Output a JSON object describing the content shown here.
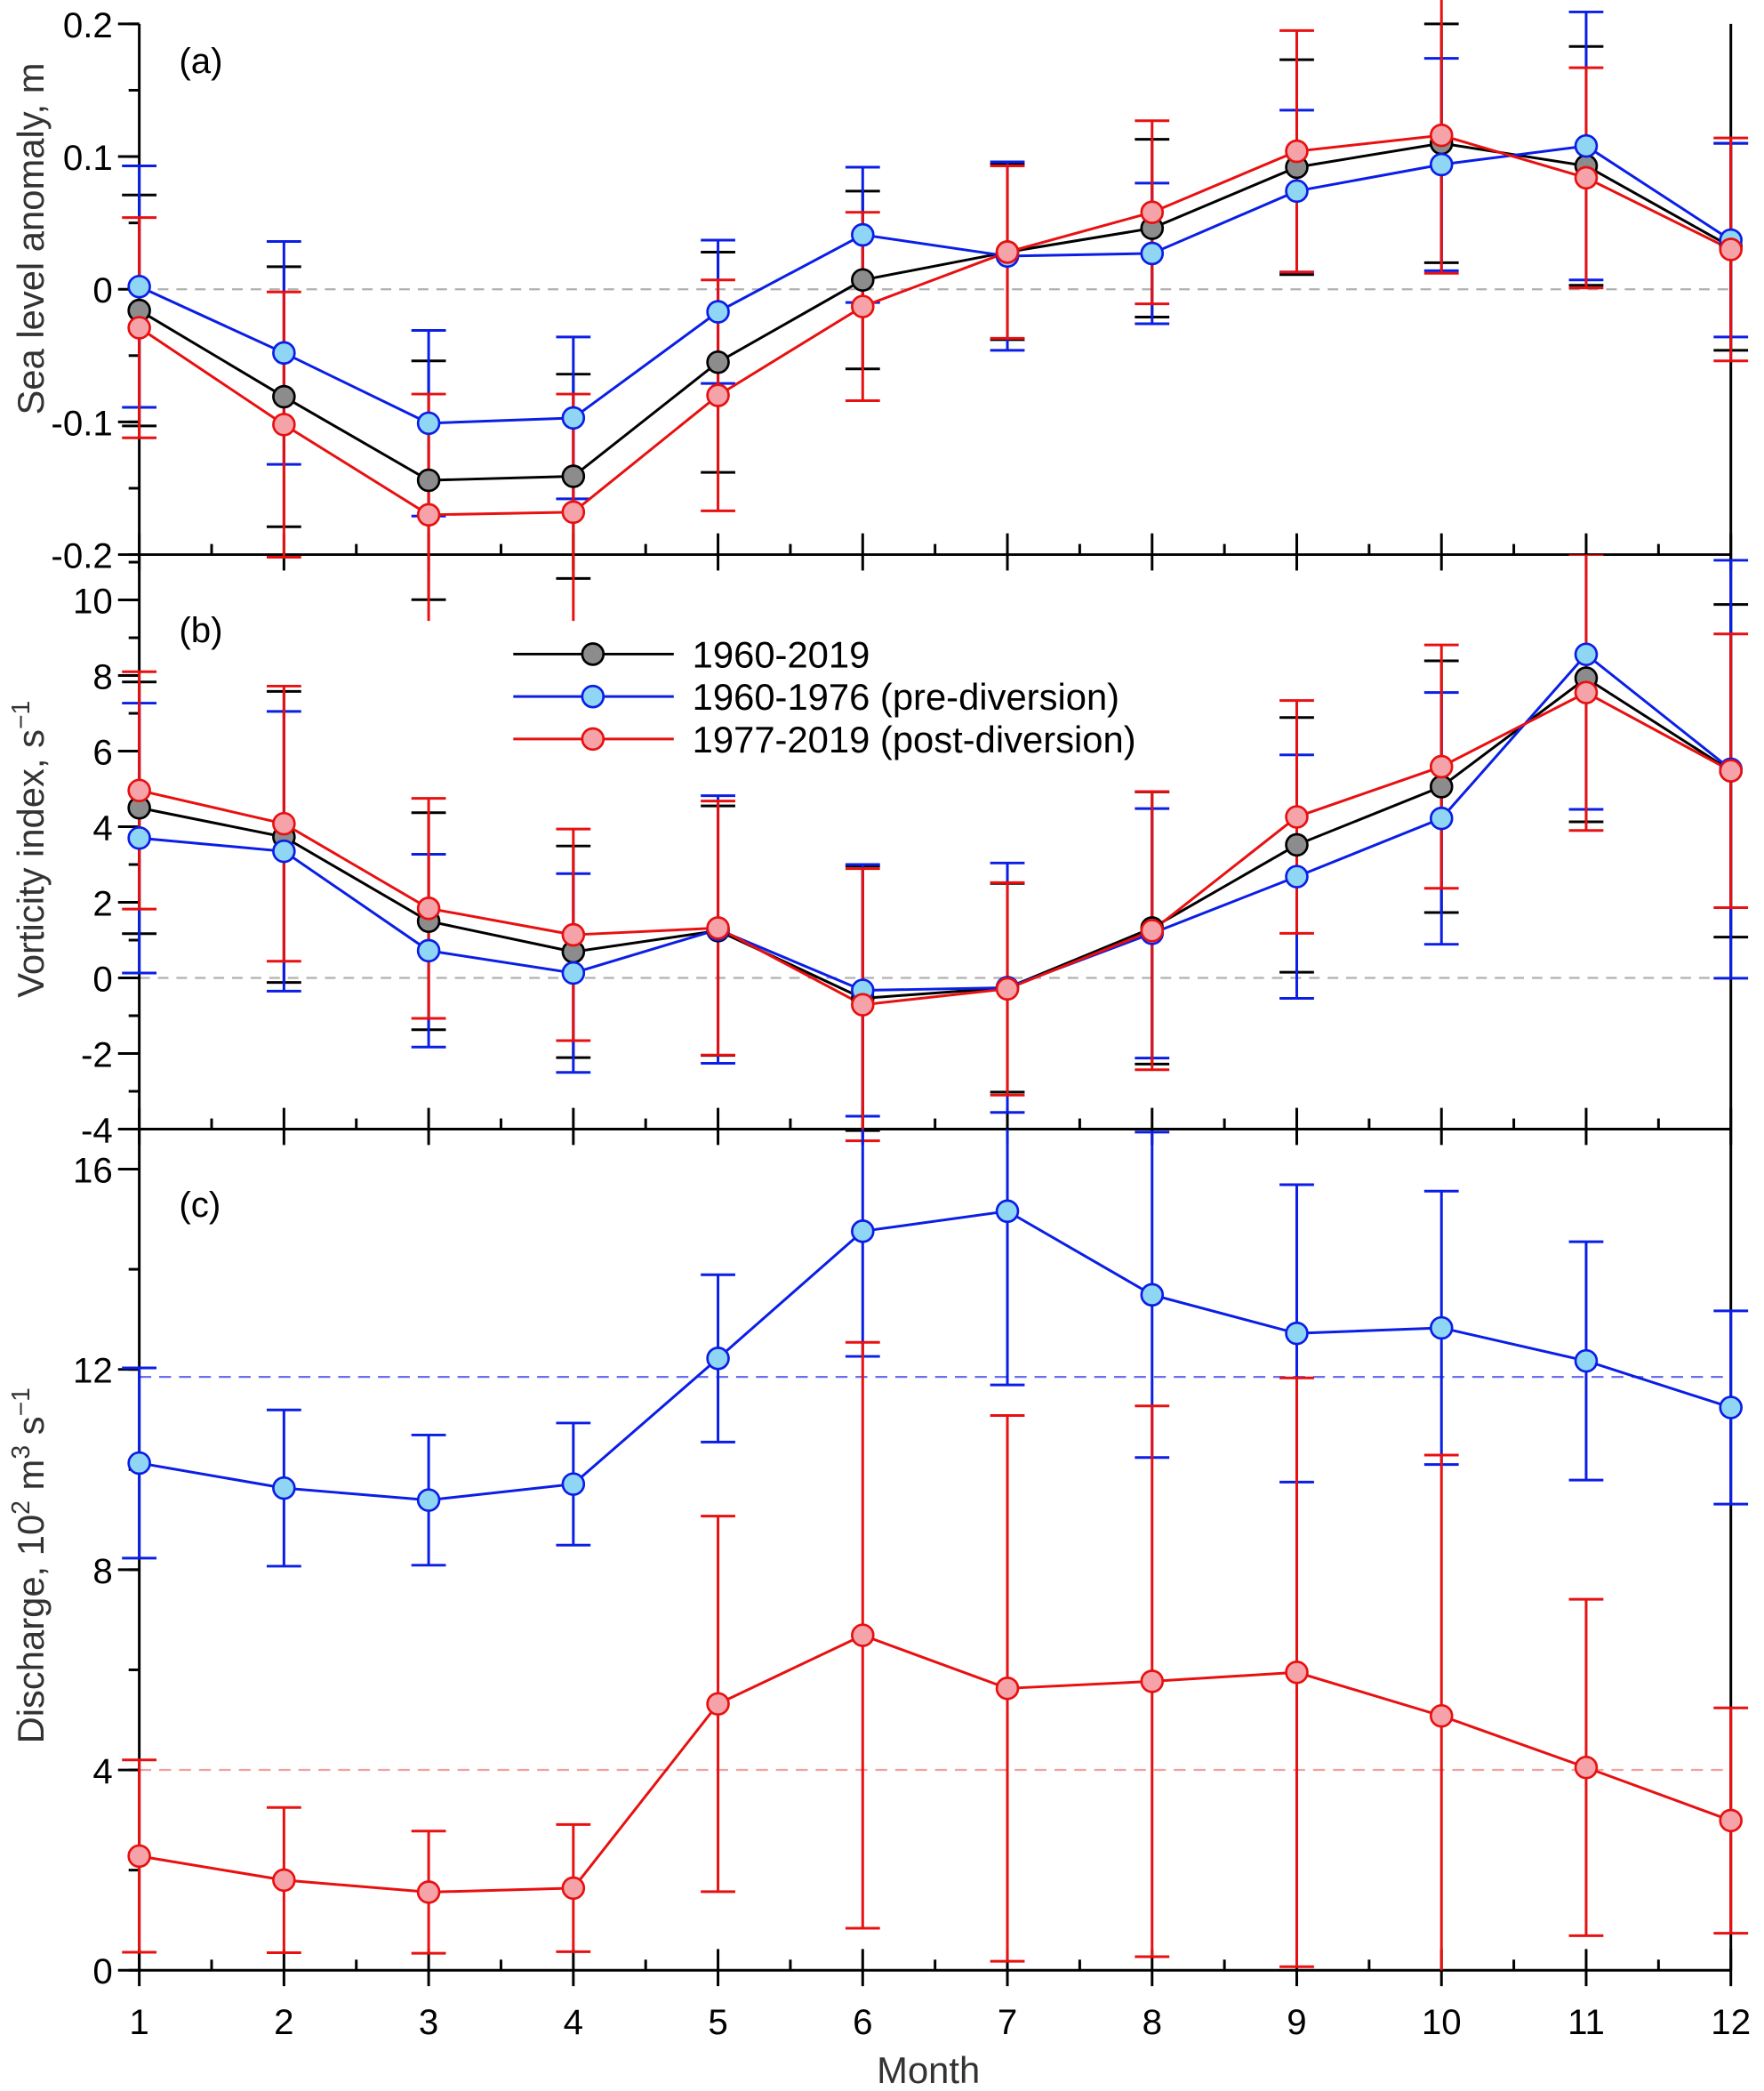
{
  "chart_data": [
    {
      "type": "line",
      "panel_label": "(a)",
      "ylabel": "Sea level anomaly, m",
      "xlabel": "",
      "ylim": [
        -0.2,
        0.2
      ],
      "yticks": [
        "-0.2",
        "-0.1",
        "0",
        "0.1",
        "0.2"
      ],
      "ytick_values": [
        -0.2,
        -0.1,
        0,
        0.1,
        0.2
      ],
      "yminor_step": 0.05,
      "zero_line": 0,
      "x": [
        1,
        2,
        3,
        4,
        5,
        6,
        7,
        8,
        9,
        10,
        11,
        12
      ],
      "series": [
        {
          "name": "1960-2019",
          "color": "#000000",
          "fill": "#8c8c8c",
          "values": [
            -0.016,
            -0.081,
            -0.144,
            -0.141,
            -0.055,
            0.007,
            0.028,
            0.046,
            0.092,
            0.11,
            0.093,
            0.032
          ],
          "errors": [
            0.087,
            0.098,
            0.09,
            0.077,
            0.083,
            0.067,
            0.066,
            0.067,
            0.081,
            0.09,
            0.09,
            0.078
          ]
        },
        {
          "name": "1960-1976 (pre-diversion)",
          "color": "#0a1ee6",
          "fill": "#8fd6f5",
          "values": [
            0.002,
            -0.048,
            -0.101,
            -0.097,
            -0.017,
            0.041,
            0.025,
            0.027,
            0.074,
            0.094,
            0.108,
            0.037
          ],
          "errors": [
            0.091,
            0.084,
            0.07,
            0.061,
            0.054,
            0.051,
            0.071,
            0.053,
            0.061,
            0.08,
            0.101,
            0.073
          ]
        },
        {
          "name": "1977-2019 (post-diversion)",
          "color": "#e81010",
          "fill": "#f5a3a8",
          "values": [
            -0.029,
            -0.102,
            -0.17,
            -0.168,
            -0.08,
            -0.013,
            0.028,
            0.058,
            0.104,
            0.116,
            0.084,
            0.03
          ],
          "errors": [
            0.083,
            0.1,
            0.091,
            0.089,
            0.087,
            0.071,
            0.065,
            0.069,
            0.091,
            0.104,
            0.083,
            0.084
          ]
        }
      ]
    },
    {
      "type": "line",
      "panel_label": "(b)",
      "ylabel": "Vorticity index, s",
      "ylabel_sup": "−1",
      "xlabel": "",
      "ylim": [
        -4,
        11.2
      ],
      "yticks": [
        "-4",
        "-2",
        "0",
        "2",
        "4",
        "6",
        "8",
        "10"
      ],
      "ytick_values": [
        -4,
        -2,
        0,
        2,
        4,
        6,
        8,
        10
      ],
      "yminor_step": 1,
      "zero_line": 0,
      "legend": {
        "placement": "top-center",
        "entries": [
          "1960-2019",
          "1960-1976 (pre-diversion)",
          "1977-2019 (post-diversion)"
        ]
      },
      "x": [
        1,
        2,
        3,
        4,
        5,
        6,
        7,
        8,
        9,
        10,
        11,
        12
      ],
      "series": [
        {
          "name": "1960-2019",
          "color": "#000000",
          "fill": "#8c8c8c",
          "values": [
            4.5,
            3.73,
            1.5,
            0.69,
            1.25,
            -0.54,
            -0.26,
            1.32,
            3.52,
            5.06,
            7.93,
            5.48
          ],
          "errors": [
            3.33,
            3.85,
            2.87,
            2.8,
            3.3,
            3.5,
            2.76,
            3.6,
            3.37,
            3.33,
            3.8,
            4.4
          ]
        },
        {
          "name": "1960-1976 (pre-diversion)",
          "color": "#0a1ee6",
          "fill": "#8fd6f5",
          "values": [
            3.7,
            3.35,
            0.72,
            0.13,
            1.28,
            -0.33,
            -0.26,
            1.18,
            2.68,
            4.22,
            8.56,
            5.52
          ],
          "errors": [
            3.57,
            3.7,
            2.55,
            2.63,
            3.54,
            3.33,
            3.3,
            3.3,
            3.22,
            3.33,
            4.1,
            5.53
          ]
        },
        {
          "name": "1977-2019 (post-diversion)",
          "color": "#e81010",
          "fill": "#f5a3a8",
          "values": [
            4.96,
            4.08,
            1.84,
            1.14,
            1.32,
            -0.71,
            -0.29,
            1.25,
            4.26,
            5.59,
            7.55,
            5.48
          ],
          "errors": [
            3.14,
            3.64,
            2.91,
            2.8,
            3.36,
            3.6,
            2.81,
            3.68,
            3.08,
            3.22,
            3.65,
            3.62
          ]
        }
      ]
    },
    {
      "type": "line",
      "panel_label": "(c)",
      "ylabel": "Discharge, 10",
      "ylabel_parts": [
        "Discharge, 10",
        "2",
        " m",
        "3",
        " s",
        "−1"
      ],
      "xlabel": "Month",
      "ylim": [
        0,
        16.8
      ],
      "yticks": [
        "0",
        "4",
        "8",
        "12",
        "16"
      ],
      "ytick_values": [
        0,
        4,
        8,
        12,
        16
      ],
      "yminor_step": 2,
      "xticks": [
        "1",
        "2",
        "3",
        "4",
        "5",
        "6",
        "7",
        "8",
        "9",
        "10",
        "11",
        "12"
      ],
      "x": [
        1,
        2,
        3,
        4,
        5,
        6,
        7,
        8,
        9,
        10,
        11,
        12
      ],
      "mean_lines": [
        {
          "value": 11.85,
          "color": "#6a6ef0"
        },
        {
          "value": 4.0,
          "color": "#f3a0a0"
        }
      ],
      "series": [
        {
          "name": "1960-1976 (pre-diversion)",
          "color": "#0a1ee6",
          "fill": "#8fd6f5",
          "values": [
            10.13,
            9.63,
            9.39,
            9.71,
            12.22,
            14.76,
            15.16,
            13.49,
            12.72,
            12.83,
            12.17,
            11.24
          ],
          "errors": [
            1.9,
            1.56,
            1.3,
            1.22,
            1.67,
            2.5,
            3.47,
            3.25,
            2.97,
            2.73,
            2.38,
            1.93
          ]
        },
        {
          "name": "1977-2019 (post-diversion)",
          "color": "#e81010",
          "fill": "#f5a3a8",
          "values": [
            2.28,
            1.8,
            1.56,
            1.64,
            5.32,
            6.69,
            5.63,
            5.77,
            5.95,
            5.08,
            4.05,
            2.99
          ],
          "errors": [
            1.92,
            1.45,
            1.22,
            1.27,
            3.75,
            5.85,
            5.45,
            5.5,
            5.88,
            5.21,
            3.36,
            2.25
          ]
        }
      ]
    }
  ]
}
